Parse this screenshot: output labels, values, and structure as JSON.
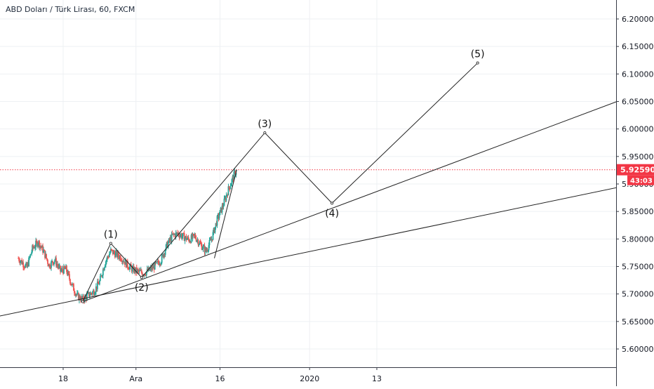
{
  "title": "ABD Doları / Türk Lirası, 60, FXCM",
  "chart_data": {
    "type": "candlestick",
    "title": "ABD Doları / Türk Lirası, 60, FXCM",
    "x_axis": {
      "unit": "date",
      "range": [
        "2019-11-10",
        "2020-01-19"
      ],
      "ticks": [
        {
          "label": "18",
          "x": "2019-11-18"
        },
        {
          "label": "Ara",
          "x": "2019-12-01"
        },
        {
          "label": "16",
          "x": "2019-12-16"
        },
        {
          "label": "2020",
          "x": "2020-01-01"
        },
        {
          "label": "13",
          "x": "2020-01-13"
        }
      ]
    },
    "y_axis": {
      "position": "right",
      "range": [
        5.56,
        6.23
      ],
      "ticks": [
        "5.60000",
        "5.65000",
        "5.70000",
        "5.75000",
        "5.80000",
        "5.85000",
        "5.90000",
        "5.95000",
        "6.00000",
        "6.05000",
        "6.10000",
        "6.15000",
        "6.20000"
      ]
    },
    "grid": true,
    "current_price": {
      "value": 5.9259,
      "label": "5.92590",
      "countdown": "43:03",
      "color": "#f23645"
    },
    "price_series": {
      "name": "",
      "up_color": "#26a69a",
      "down_color": "#ef5350",
      "points": [
        [
          "2019-11-10T00:00",
          5.765
        ],
        [
          "2019-11-11T12:00",
          5.748
        ],
        [
          "2019-11-12T12:00",
          5.782
        ],
        [
          "2019-11-13T12:00",
          5.795
        ],
        [
          "2019-11-14T12:00",
          5.778
        ],
        [
          "2019-11-15T12:00",
          5.752
        ],
        [
          "2019-11-16T12:00",
          5.762
        ],
        [
          "2019-11-17T12:00",
          5.742
        ],
        [
          "2019-11-18T12:00",
          5.745
        ],
        [
          "2019-11-19T12:00",
          5.718
        ],
        [
          "2019-11-20T12:00",
          5.696
        ],
        [
          "2019-11-21T12:00",
          5.69
        ],
        [
          "2019-11-22T12:00",
          5.698
        ],
        [
          "2019-11-23T12:00",
          5.705
        ],
        [
          "2019-11-24T12:00",
          5.722
        ],
        [
          "2019-11-25T12:00",
          5.758
        ],
        [
          "2019-11-26T12:00",
          5.778
        ],
        [
          "2019-11-27T12:00",
          5.772
        ],
        [
          "2019-11-28T12:00",
          5.765
        ],
        [
          "2019-11-29T12:00",
          5.752
        ],
        [
          "2019-11-30T12:00",
          5.744
        ],
        [
          "2019-12-01T12:00",
          5.74
        ],
        [
          "2019-12-02T12:00",
          5.738
        ],
        [
          "2019-12-03T12:00",
          5.744
        ],
        [
          "2019-12-04T12:00",
          5.752
        ],
        [
          "2019-12-05T12:00",
          5.762
        ],
        [
          "2019-12-06T12:00",
          5.788
        ],
        [
          "2019-12-07T12:00",
          5.806
        ],
        [
          "2019-12-08T12:00",
          5.81
        ],
        [
          "2019-12-09T12:00",
          5.804
        ],
        [
          "2019-12-10T12:00",
          5.798
        ],
        [
          "2019-12-11T12:00",
          5.805
        ],
        [
          "2019-12-12T12:00",
          5.79
        ],
        [
          "2019-12-13T12:00",
          5.778
        ],
        [
          "2019-12-14T12:00",
          5.8
        ],
        [
          "2019-12-15T12:00",
          5.835
        ],
        [
          "2019-12-16T12:00",
          5.86
        ],
        [
          "2019-12-17T12:00",
          5.89
        ],
        [
          "2019-12-18T12:00",
          5.916
        ],
        [
          "2019-12-19T00:00",
          5.926
        ]
      ]
    },
    "wave_path": {
      "color": "#222222",
      "points": [
        {
          "x": "2019-11-21T12:00",
          "y": 5.686
        },
        {
          "x": "2019-11-26T12:00",
          "y": 5.792
        },
        {
          "x": "2019-12-02T00:00",
          "y": 5.73
        },
        {
          "x": "2019-12-24T00:00",
          "y": 5.993
        },
        {
          "x": "2020-01-05T00:00",
          "y": 5.865
        },
        {
          "x": "2020-01-31T00:00",
          "y": 6.12
        }
      ]
    },
    "wave_labels": [
      {
        "label": "(1)",
        "x": "2019-11-26T12:00",
        "y": 5.792,
        "position": "above"
      },
      {
        "label": "(2)",
        "x": "2019-12-02T00:00",
        "y": 5.73,
        "position": "below"
      },
      {
        "label": "(3)",
        "x": "2019-12-24T00:00",
        "y": 5.993,
        "position": "above"
      },
      {
        "label": "(4)",
        "x": "2020-01-05T00:00",
        "y": 5.865,
        "position": "below"
      },
      {
        "label": "(5)",
        "x": "2020-01-31T00:00",
        "y": 6.12,
        "position": "above"
      }
    ],
    "trend_lines": [
      {
        "name": "",
        "from": {
          "x": "2019-11-21T12:00",
          "y": 5.686
        },
        "to": {
          "x": "2020-02-27T00:00",
          "y": 6.058
        }
      },
      {
        "name": "",
        "from": {
          "x": "2019-11-02T00:00",
          "y": 5.65
        },
        "to": {
          "x": "2020-02-27T00:00",
          "y": 5.898
        }
      },
      {
        "name": "",
        "from": {
          "x": "2019-12-15T00:00",
          "y": 5.765
        },
        "to": {
          "x": "2019-12-19T00:00",
          "y": 5.926
        }
      }
    ]
  }
}
